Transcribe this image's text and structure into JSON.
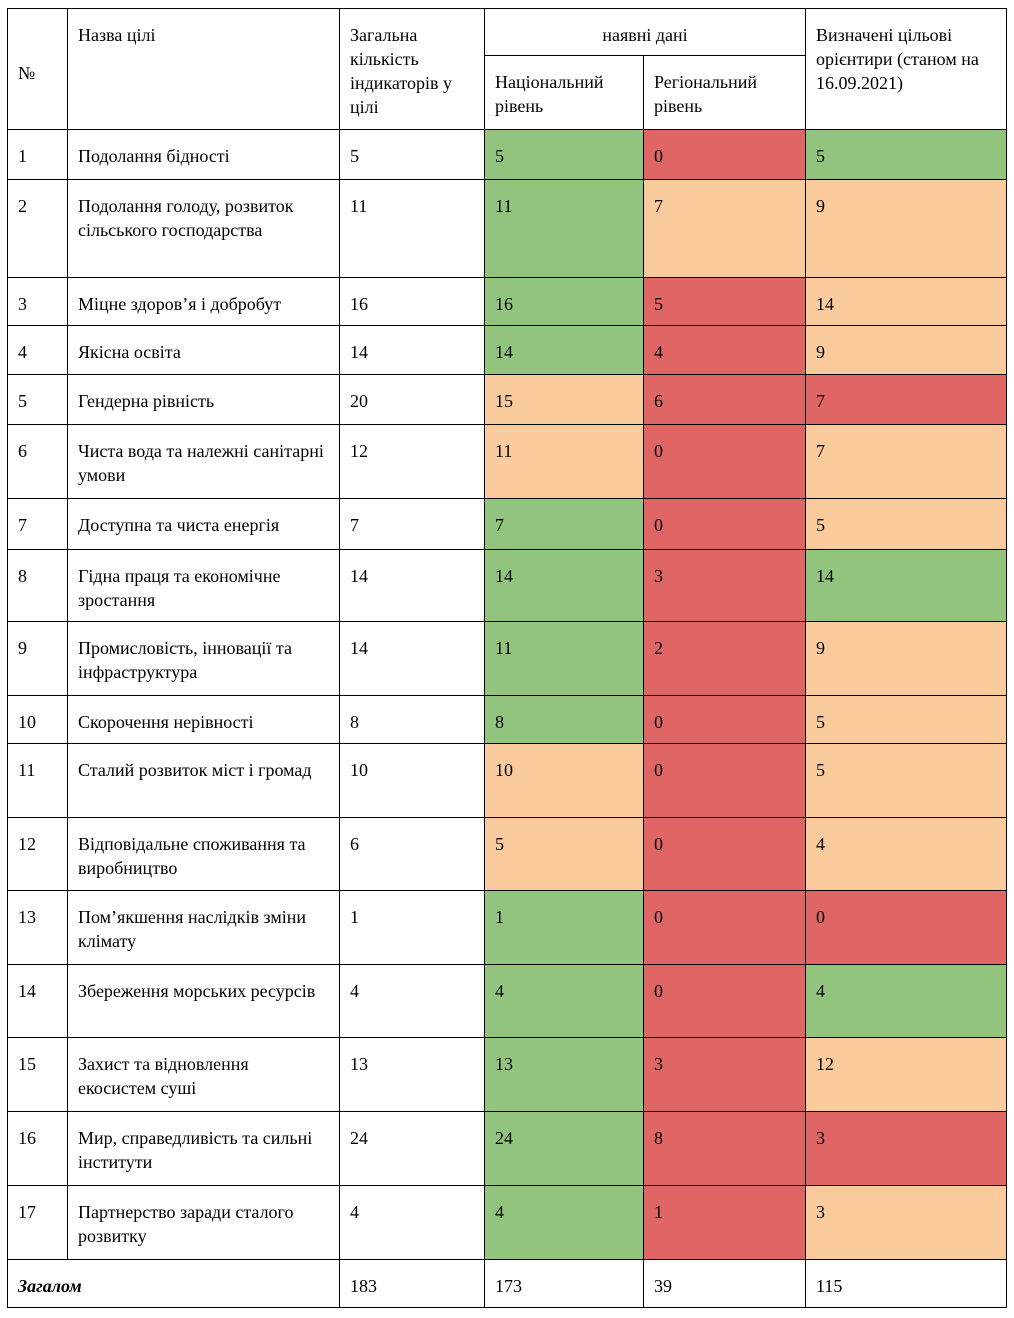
{
  "headers": {
    "num": "№",
    "name": "Назва цілі",
    "total": "Загальна кількість індикаторів у цілі",
    "available": "наявні дані",
    "national": "Національний рівень",
    "regional": "Регіональний рівень",
    "targets": "Визначені цільові орієнтири (станом на 16.09.2021)"
  },
  "colors": {
    "green": "#93c47d",
    "orange": "#f9cb9c",
    "red": "#e06666"
  },
  "rows": [
    {
      "num": "1",
      "name": "Подолання бідності",
      "total": "5",
      "national": "5",
      "national_color": "green",
      "regional": "0",
      "regional_color": "red",
      "target": "5",
      "target_color": "green"
    },
    {
      "num": "2",
      "name": "Подолання голоду, розвиток сільського господарства",
      "total": "11",
      "national": "11",
      "national_color": "green",
      "regional": "7",
      "regional_color": "orange",
      "target": "9",
      "target_color": "orange"
    },
    {
      "num": "3",
      "name": "Міцне здоров’я і добробут",
      "total": "16",
      "national": "16",
      "national_color": "green",
      "regional": "5",
      "regional_color": "red",
      "target": "14",
      "target_color": "orange"
    },
    {
      "num": "4",
      "name": "Якісна освіта",
      "total": "14",
      "national": "14",
      "national_color": "green",
      "regional": "4",
      "regional_color": "red",
      "target": "9",
      "target_color": "orange"
    },
    {
      "num": "5",
      "name": "Гендерна рівність",
      "total": "20",
      "national": "15",
      "national_color": "orange",
      "regional": "6",
      "regional_color": "red",
      "target": "7",
      "target_color": "red"
    },
    {
      "num": "6",
      "name": "Чиста вода та належні санітарні умови",
      "total": "12",
      "national": "11",
      "national_color": "orange",
      "regional": "0",
      "regional_color": "red",
      "target": "7",
      "target_color": "orange"
    },
    {
      "num": "7",
      "name": "Доступна та чиста енергія",
      "total": "7",
      "national": "7",
      "national_color": "green",
      "regional": "0",
      "regional_color": "red",
      "target": "5",
      "target_color": "orange"
    },
    {
      "num": "8",
      "name": "Гідна праця та економічне зростання",
      "total": "14",
      "national": "14",
      "national_color": "green",
      "regional": "3",
      "regional_color": "red",
      "target": "14",
      "target_color": "green"
    },
    {
      "num": "9",
      "name": "Промисловість, інновації та інфраструктура",
      "total": "14",
      "national": "11",
      "national_color": "green",
      "regional": "2",
      "regional_color": "red",
      "target": "9",
      "target_color": "orange"
    },
    {
      "num": "10",
      "name": "Скорочення нерівності",
      "total": "8",
      "national": "8",
      "national_color": "green",
      "regional": "0",
      "regional_color": "red",
      "target": "5",
      "target_color": "orange"
    },
    {
      "num": "11",
      "name": "Сталий розвиток міст і громад",
      "total": "10",
      "national": "10",
      "national_color": "orange",
      "regional": "0",
      "regional_color": "red",
      "target": "5",
      "target_color": "orange"
    },
    {
      "num": "12",
      "name": "Відповідальне споживання та виробництво",
      "total": "6",
      "national": "5",
      "national_color": "orange",
      "regional": "0",
      "regional_color": "red",
      "target": "4",
      "target_color": "orange"
    },
    {
      "num": "13",
      "name": "Пом’якшення наслідків зміни клімату",
      "total": "1",
      "national": "1",
      "national_color": "green",
      "regional": "0",
      "regional_color": "red",
      "target": "0",
      "target_color": "red"
    },
    {
      "num": "14",
      "name": "Збереження морських ресурсів",
      "total": "4",
      "national": "4",
      "national_color": "green",
      "regional": "0",
      "regional_color": "red",
      "target": "4",
      "target_color": "green"
    },
    {
      "num": "15",
      "name": "Захист та відновлення екосистем суші",
      "total": "13",
      "national": "13",
      "national_color": "green",
      "regional": "3",
      "regional_color": "red",
      "target": "12",
      "target_color": "orange"
    },
    {
      "num": "16",
      "name": "Мир, справедливість та сильні інститути",
      "total": "24",
      "national": "24",
      "national_color": "green",
      "regional": "8",
      "regional_color": "red",
      "target": "3",
      "target_color": "red"
    },
    {
      "num": "17",
      "name": "Партнерство заради сталого розвитку",
      "total": "4",
      "national": "4",
      "national_color": "green",
      "regional": "1",
      "regional_color": "red",
      "target": "3",
      "target_color": "orange"
    }
  ],
  "totals": {
    "label": "Загалом",
    "total": "183",
    "national": "173",
    "regional": "39",
    "target": "115"
  }
}
